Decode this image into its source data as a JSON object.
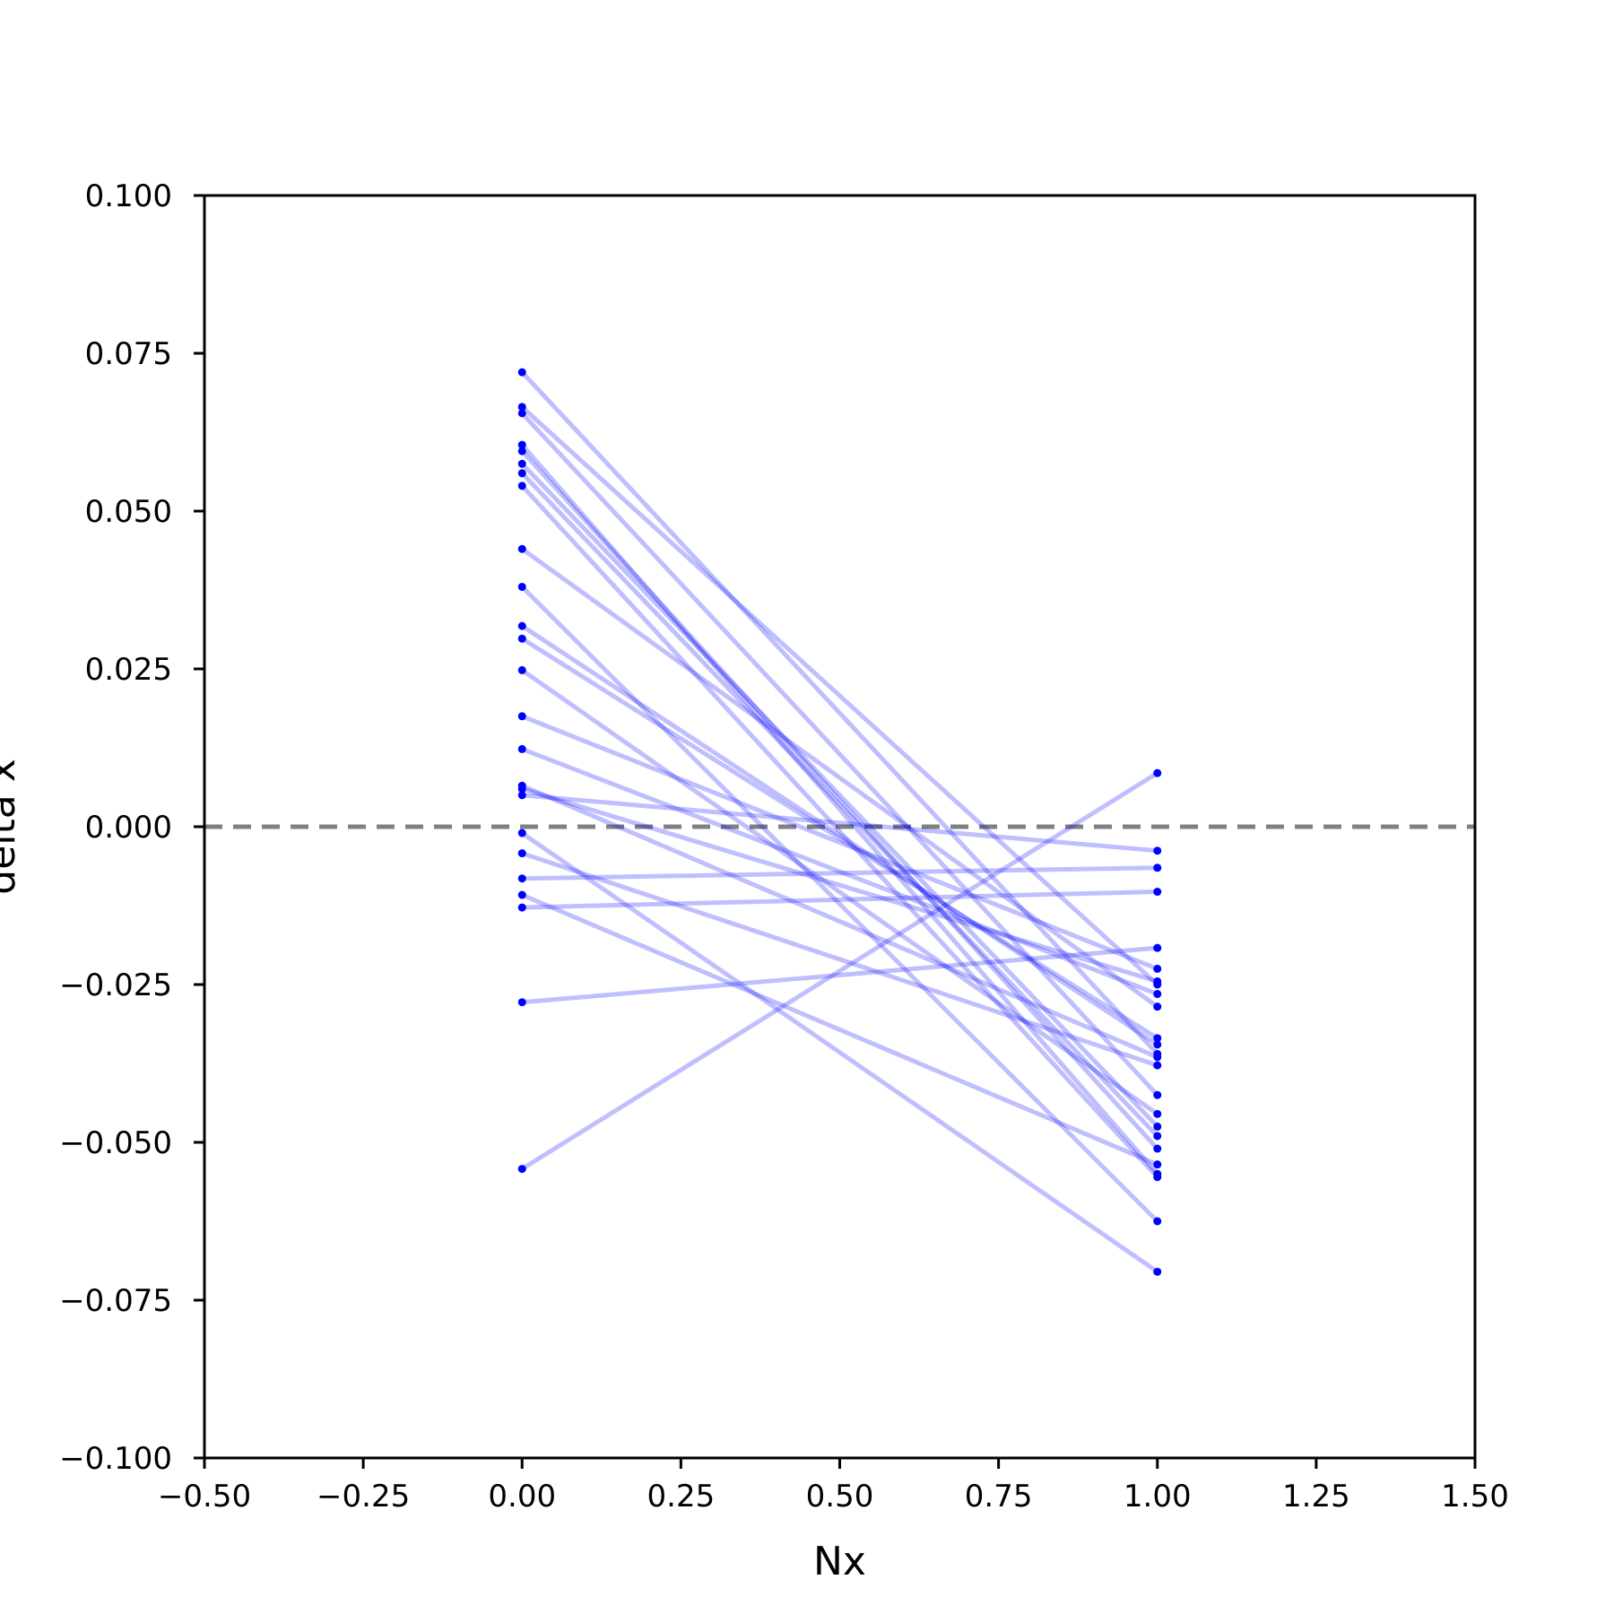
{
  "chart_data": {
    "type": "line",
    "xlabel": "Nx",
    "ylabel": "delta x",
    "xlim": [
      -0.5,
      1.5
    ],
    "ylim": [
      -0.1,
      0.1
    ],
    "xticks": [
      "−0.50",
      "−0.25",
      "0.00",
      "0.25",
      "0.50",
      "0.75",
      "1.00",
      "1.25",
      "1.50"
    ],
    "yticks": [
      "−0.100",
      "−0.075",
      "−0.050",
      "−0.025",
      "0.000",
      "0.025",
      "0.050",
      "0.075",
      "0.100"
    ],
    "grid": false,
    "reference_line": {
      "y": 0,
      "style": "dashed",
      "color": "#808080"
    },
    "line_color": "#0000ff",
    "marker_color": "#0000ff",
    "pairs": [
      {
        "x": [
          0,
          1
        ],
        "y": [
          0.072,
          -0.036
        ]
      },
      {
        "x": [
          0,
          1
        ],
        "y": [
          0.0665,
          -0.025
        ]
      },
      {
        "x": [
          0,
          1
        ],
        "y": [
          0.0655,
          -0.0425
        ]
      },
      {
        "x": [
          0,
          1
        ],
        "y": [
          0.0605,
          -0.055
        ]
      },
      {
        "x": [
          0,
          1
        ],
        "y": [
          0.0595,
          -0.051
        ]
      },
      {
        "x": [
          0,
          1
        ],
        "y": [
          0.0575,
          -0.0475
        ]
      },
      {
        "x": [
          0,
          1
        ],
        "y": [
          0.056,
          -0.049
        ]
      },
      {
        "x": [
          0,
          1
        ],
        "y": [
          0.054,
          -0.0555
        ]
      },
      {
        "x": [
          0,
          1
        ],
        "y": [
          0.044,
          -0.0285
        ]
      },
      {
        "x": [
          0,
          1
        ],
        "y": [
          0.038,
          -0.0625
        ]
      },
      {
        "x": [
          0,
          1
        ],
        "y": [
          0.0318,
          -0.0345
        ]
      },
      {
        "x": [
          0,
          1
        ],
        "y": [
          0.0298,
          -0.0335
        ]
      },
      {
        "x": [
          0,
          1
        ],
        "y": [
          0.0248,
          -0.0455
        ]
      },
      {
        "x": [
          0,
          1
        ],
        "y": [
          0.0175,
          -0.0225
        ]
      },
      {
        "x": [
          0,
          1
        ],
        "y": [
          0.0123,
          -0.0265
        ]
      },
      {
        "x": [
          0,
          1
        ],
        "y": [
          0.0065,
          -0.0365
        ]
      },
      {
        "x": [
          0,
          1
        ],
        "y": [
          0.006,
          -0.0245
        ]
      },
      {
        "x": [
          0,
          1
        ],
        "y": [
          0.005,
          -0.0038
        ]
      },
      {
        "x": [
          0,
          1
        ],
        "y": [
          -0.001,
          -0.0705
        ]
      },
      {
        "x": [
          0,
          1
        ],
        "y": [
          -0.0042,
          -0.0378
        ]
      },
      {
        "x": [
          0,
          1
        ],
        "y": [
          -0.0082,
          -0.0065
        ]
      },
      {
        "x": [
          0,
          1
        ],
        "y": [
          -0.0108,
          -0.0535
        ]
      },
      {
        "x": [
          0,
          1
        ],
        "y": [
          -0.0128,
          -0.0103
        ]
      },
      {
        "x": [
          0,
          1
        ],
        "y": [
          -0.0278,
          -0.0192
        ]
      },
      {
        "x": [
          0,
          1
        ],
        "y": [
          -0.0542,
          0.0085
        ]
      }
    ]
  }
}
